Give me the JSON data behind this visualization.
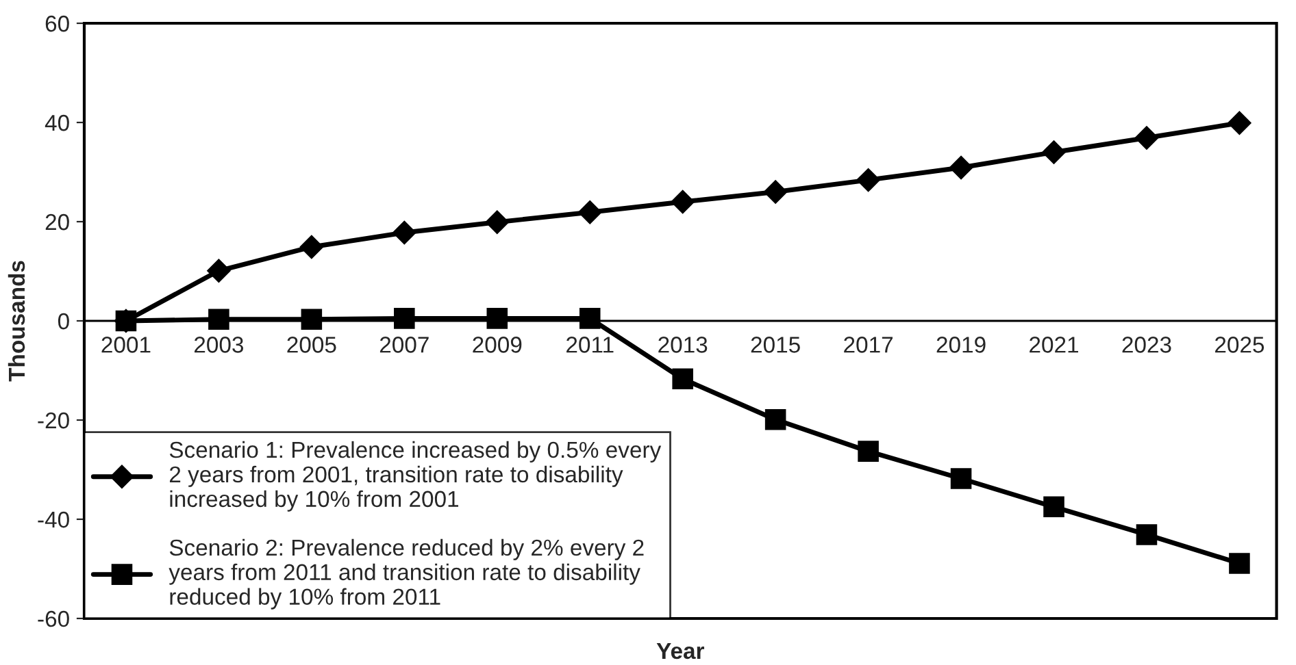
{
  "chart_data": {
    "type": "line",
    "xlabel": "Year",
    "ylabel": "Thousands",
    "categories": [
      "2001",
      "2003",
      "2005",
      "2007",
      "2009",
      "2011",
      "2013",
      "2015",
      "2017",
      "2019",
      "2021",
      "2023",
      "2025"
    ],
    "series": [
      {
        "name": "Scenario 1: Prevalence increased by 0.5% every 2 years from 2001, transition rate to disability increased by 10% from 2001",
        "color": "#000000",
        "marker": "diamond",
        "values": [
          0,
          10.1,
          14.9,
          17.8,
          19.9,
          21.9,
          24.0,
          26.0,
          28.4,
          30.9,
          34.0,
          36.9,
          39.9
        ]
      },
      {
        "name": "Scenario 2: Prevalence reduced by 2% every 2 years from 2011 and transition rate to disability reduced by 10% from 2011",
        "color": "#000000",
        "marker": "square",
        "values": [
          0,
          0.3,
          0.3,
          0.5,
          0.5,
          0.5,
          -11.7,
          -19.9,
          -26.3,
          -31.8,
          -37.5,
          -43.1,
          -48.9
        ]
      }
    ],
    "ylim": [
      -60,
      60
    ],
    "yticks": [
      -60,
      -40,
      -20,
      0,
      20,
      40,
      60
    ],
    "grid": false,
    "legend": "bottom left",
    "line_style": "solid"
  }
}
